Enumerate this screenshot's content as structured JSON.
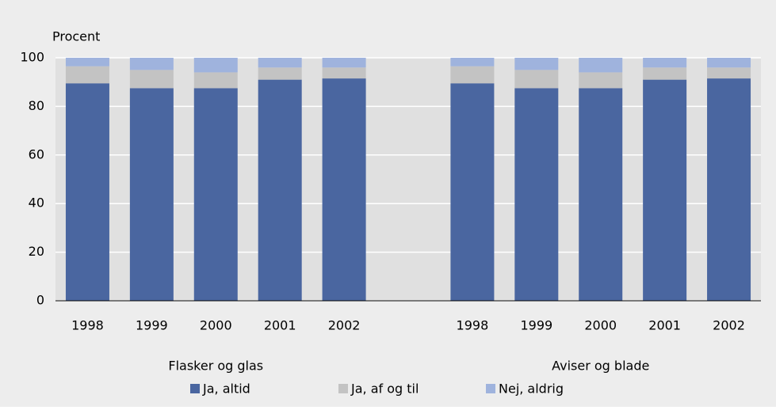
{
  "chart_data": {
    "type": "stacked_bar",
    "y_label": "Procent",
    "categories": [
      "1998",
      "1999",
      "2000",
      "2001",
      "2002",
      null,
      "1998",
      "1999",
      "2000",
      "2001",
      "2002"
    ],
    "group_labels": [
      "Flasker og glas",
      "Aviser og blade"
    ],
    "series": [
      {
        "name": "Ja, altid",
        "color": "#4a66a0",
        "values": [
          89.5,
          87.5,
          87.5,
          91,
          91.5,
          null,
          89.5,
          87.5,
          87.5,
          91,
          91.5
        ]
      },
      {
        "name": "Ja, af og til",
        "color": "#c3c3c3",
        "values": [
          7,
          7.5,
          6.5,
          5,
          4.5,
          null,
          7,
          7.5,
          6.5,
          5,
          4.5
        ]
      },
      {
        "name": "Nej, aldrig",
        "color": "#9fb3dd",
        "values": [
          3.5,
          5,
          6,
          4,
          4,
          null,
          3.5,
          5,
          6,
          4,
          4
        ]
      }
    ],
    "ylim": [
      0,
      100
    ],
    "yticks": [
      0,
      20,
      40,
      60,
      80,
      100
    ],
    "grid": true,
    "legend": "bottom"
  }
}
